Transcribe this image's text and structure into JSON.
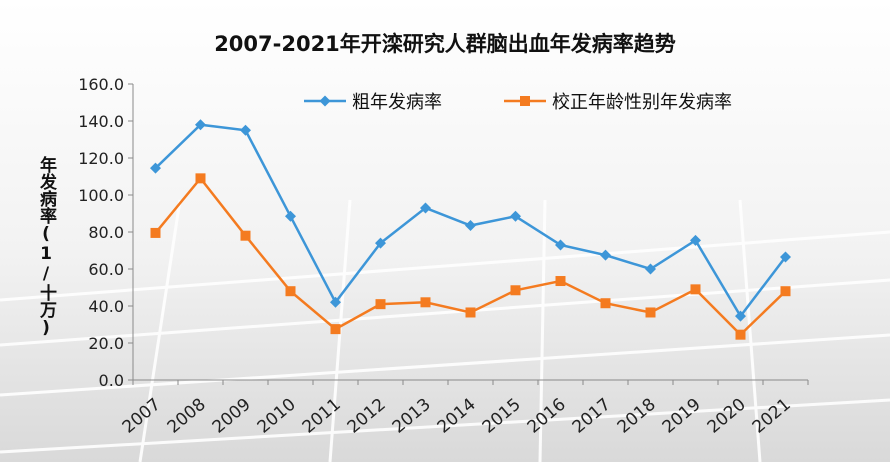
{
  "chart_data": {
    "type": "line",
    "title": "2007-2021年开滦研究人群脑出血年发病率趋势",
    "xlabel": "",
    "ylabel": "年发病率(1/十万)",
    "ylim": [
      0,
      160
    ],
    "yticks": [
      "0.0",
      "20.0",
      "40.0",
      "60.0",
      "80.0",
      "100.0",
      "120.0",
      "140.0",
      "160.0"
    ],
    "categories": [
      "2007",
      "2008",
      "2009",
      "2010",
      "2011",
      "2012",
      "2013",
      "2014",
      "2015",
      "2016",
      "2017",
      "2018",
      "2019",
      "2020",
      "2021"
    ],
    "legend_position": "top-right",
    "grid": false,
    "series": [
      {
        "name": "粗年发病率",
        "color": "#3d96d8",
        "marker": "diamond",
        "values": [
          114.5,
          138.0,
          135.0,
          88.5,
          42.0,
          74.0,
          93.0,
          83.5,
          88.5,
          73.0,
          67.5,
          60.0,
          75.5,
          34.5,
          66.5
        ]
      },
      {
        "name": "校正年龄性别年发病率",
        "color": "#f47b20",
        "marker": "square",
        "values": [
          79.5,
          109.0,
          78.0,
          48.0,
          27.5,
          41.0,
          42.0,
          36.5,
          48.5,
          53.5,
          41.5,
          36.5,
          49.0,
          24.5,
          48.0
        ]
      }
    ]
  }
}
